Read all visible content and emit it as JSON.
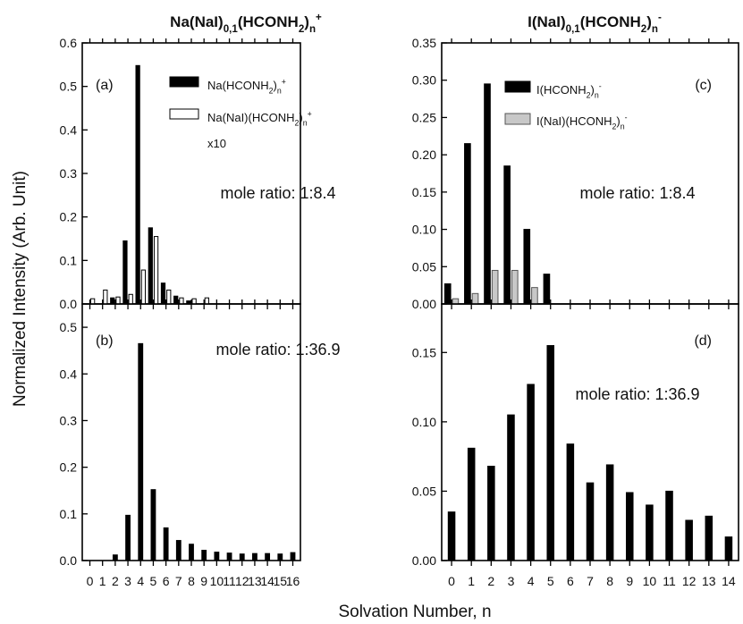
{
  "chart_data": [
    {
      "type": "bar",
      "panel": "a",
      "title_parts": [
        {
          "t": "Na(NaI)"
        },
        {
          "t": "0,1",
          "sub": true
        },
        {
          "t": "(HCONH"
        },
        {
          "t": "2",
          "sub": true
        },
        {
          "t": ")"
        },
        {
          "t": "n",
          "sub": true
        },
        {
          "t": "+",
          "sup": true
        }
      ],
      "panel_label": "(a)",
      "annotation": "mole ratio: 1:8.4",
      "x_ticks": [
        "0",
        "1",
        "2",
        "3",
        "4",
        "5",
        "6",
        "7",
        "8",
        "9",
        "10",
        "11",
        "12",
        "13",
        "14",
        "15",
        "16"
      ],
      "xlim": [
        -0.6,
        16.6
      ],
      "ylim": [
        0,
        0.6
      ],
      "y_ticks": [
        0.0,
        0.1,
        0.2,
        0.3,
        0.4,
        0.5,
        0.6
      ],
      "y_tick_labels": [
        "0.0",
        "0.1",
        "0.2",
        "0.3",
        "0.4",
        "0.5",
        "0.6"
      ],
      "series": [
        {
          "legend_parts": [
            {
              "t": "Na(HCONH"
            },
            {
              "t": "2",
              "sub": true
            },
            {
              "t": ")"
            },
            {
              "t": "n",
              "sub": true
            },
            {
              "t": "+",
              "sup": true
            }
          ],
          "fill": "#000000",
          "stroke": "#000000",
          "x": [
            2,
            3,
            4,
            5,
            6,
            7,
            8
          ],
          "values": [
            0.014,
            0.145,
            0.548,
            0.175,
            0.048,
            0.018,
            0.007
          ]
        },
        {
          "legend_parts": [
            {
              "t": "Na(NaI)(HCONH"
            },
            {
              "t": "2",
              "sub": true
            },
            {
              "t": ")"
            },
            {
              "t": "n",
              "sub": true
            },
            {
              "t": "+",
              "sup": true
            }
          ],
          "legend_extra": "x10",
          "fill": "#ffffff",
          "stroke": "#000000",
          "x": [
            0,
            1,
            2,
            3,
            4,
            5,
            6,
            7,
            8,
            9
          ],
          "values": [
            0.012,
            0.032,
            0.016,
            0.022,
            0.078,
            0.155,
            0.032,
            0.014,
            0.012,
            0.014
          ]
        }
      ]
    },
    {
      "type": "bar",
      "panel": "b",
      "panel_label": "(b)",
      "annotation": "mole ratio: 1:36.9",
      "x_ticks": [
        "0",
        "1",
        "2",
        "3",
        "4",
        "5",
        "6",
        "7",
        "8",
        "9",
        "10",
        "11",
        "12",
        "13",
        "14",
        "15",
        "16"
      ],
      "xlim": [
        -0.6,
        16.6
      ],
      "ylim": [
        0,
        0.55
      ],
      "y_ticks": [
        0.0,
        0.1,
        0.2,
        0.3,
        0.4,
        0.5
      ],
      "y_tick_labels": [
        "0.0",
        "0.1",
        "0.2",
        "0.3",
        "0.4",
        "0.5"
      ],
      "series": [
        {
          "fill": "#000000",
          "stroke": "#000000",
          "x": [
            2,
            3,
            4,
            5,
            6,
            7,
            8,
            9,
            10,
            11,
            12,
            13,
            14,
            15,
            16
          ],
          "values": [
            0.012,
            0.097,
            0.465,
            0.152,
            0.07,
            0.043,
            0.035,
            0.022,
            0.018,
            0.016,
            0.014,
            0.015,
            0.015,
            0.014,
            0.017
          ]
        }
      ]
    },
    {
      "type": "bar",
      "panel": "c",
      "title_parts": [
        {
          "t": "I(NaI)"
        },
        {
          "t": "0,1",
          "sub": true
        },
        {
          "t": "(HCONH"
        },
        {
          "t": "2",
          "sub": true
        },
        {
          "t": ")"
        },
        {
          "t": "n",
          "sub": true
        },
        {
          "t": "-",
          "sup": true
        }
      ],
      "panel_label": "(c)",
      "annotation": "mole ratio: 1:8.4",
      "x_ticks": [
        "0",
        "1",
        "2",
        "3",
        "4",
        "5",
        "6",
        "7",
        "8",
        "9",
        "10",
        "11",
        "12",
        "13",
        "14"
      ],
      "xlim": [
        -0.5,
        14.5
      ],
      "ylim": [
        0,
        0.35
      ],
      "y_ticks": [
        0.0,
        0.05,
        0.1,
        0.15,
        0.2,
        0.25,
        0.3,
        0.35
      ],
      "y_tick_labels": [
        "0.00",
        "0.05",
        "0.10",
        "0.15",
        "0.20",
        "0.25",
        "0.30",
        "0.35"
      ],
      "series": [
        {
          "legend_parts": [
            {
              "t": "I(HCONH"
            },
            {
              "t": "2",
              "sub": true
            },
            {
              "t": ")"
            },
            {
              "t": "n",
              "sub": true
            },
            {
              "t": "-",
              "sup": true
            }
          ],
          "fill": "#000000",
          "stroke": "#000000",
          "x": [
            0,
            1,
            2,
            3,
            4,
            5
          ],
          "values": [
            0.027,
            0.215,
            0.295,
            0.185,
            0.1,
            0.04
          ]
        },
        {
          "legend_parts": [
            {
              "t": "I(NaI)(HCONH"
            },
            {
              "t": "2",
              "sub": true
            },
            {
              "t": ")"
            },
            {
              "t": "n",
              "sub": true
            },
            {
              "t": "-",
              "sup": true
            }
          ],
          "fill": "#c8c8c8",
          "stroke": "#555555",
          "x": [
            0,
            1,
            2,
            3,
            4
          ],
          "values": [
            0.007,
            0.014,
            0.045,
            0.045,
            0.022
          ]
        }
      ]
    },
    {
      "type": "bar",
      "panel": "d",
      "panel_label": "(d)",
      "annotation": "mole ratio: 1:36.9",
      "x_ticks": [
        "0",
        "1",
        "2",
        "3",
        "4",
        "5",
        "6",
        "7",
        "8",
        "9",
        "10",
        "11",
        "12",
        "13",
        "14"
      ],
      "xlim": [
        -0.5,
        14.5
      ],
      "ylim": [
        0,
        0.185
      ],
      "y_ticks": [
        0.0,
        0.05,
        0.1,
        0.15
      ],
      "y_tick_labels": [
        "0.00",
        "0.05",
        "0.10",
        "0.15"
      ],
      "series": [
        {
          "fill": "#000000",
          "stroke": "#000000",
          "x": [
            0,
            1,
            2,
            3,
            4,
            5,
            6,
            7,
            8,
            9,
            10,
            11,
            12,
            13,
            14
          ],
          "values": [
            0.035,
            0.081,
            0.068,
            0.105,
            0.127,
            0.155,
            0.084,
            0.056,
            0.069,
            0.049,
            0.04,
            0.05,
            0.029,
            0.032,
            0.017
          ]
        }
      ]
    }
  ],
  "ylabel": "Normalized Intensity (Arb. Unit)",
  "xlabel": "Solvation Number, n"
}
